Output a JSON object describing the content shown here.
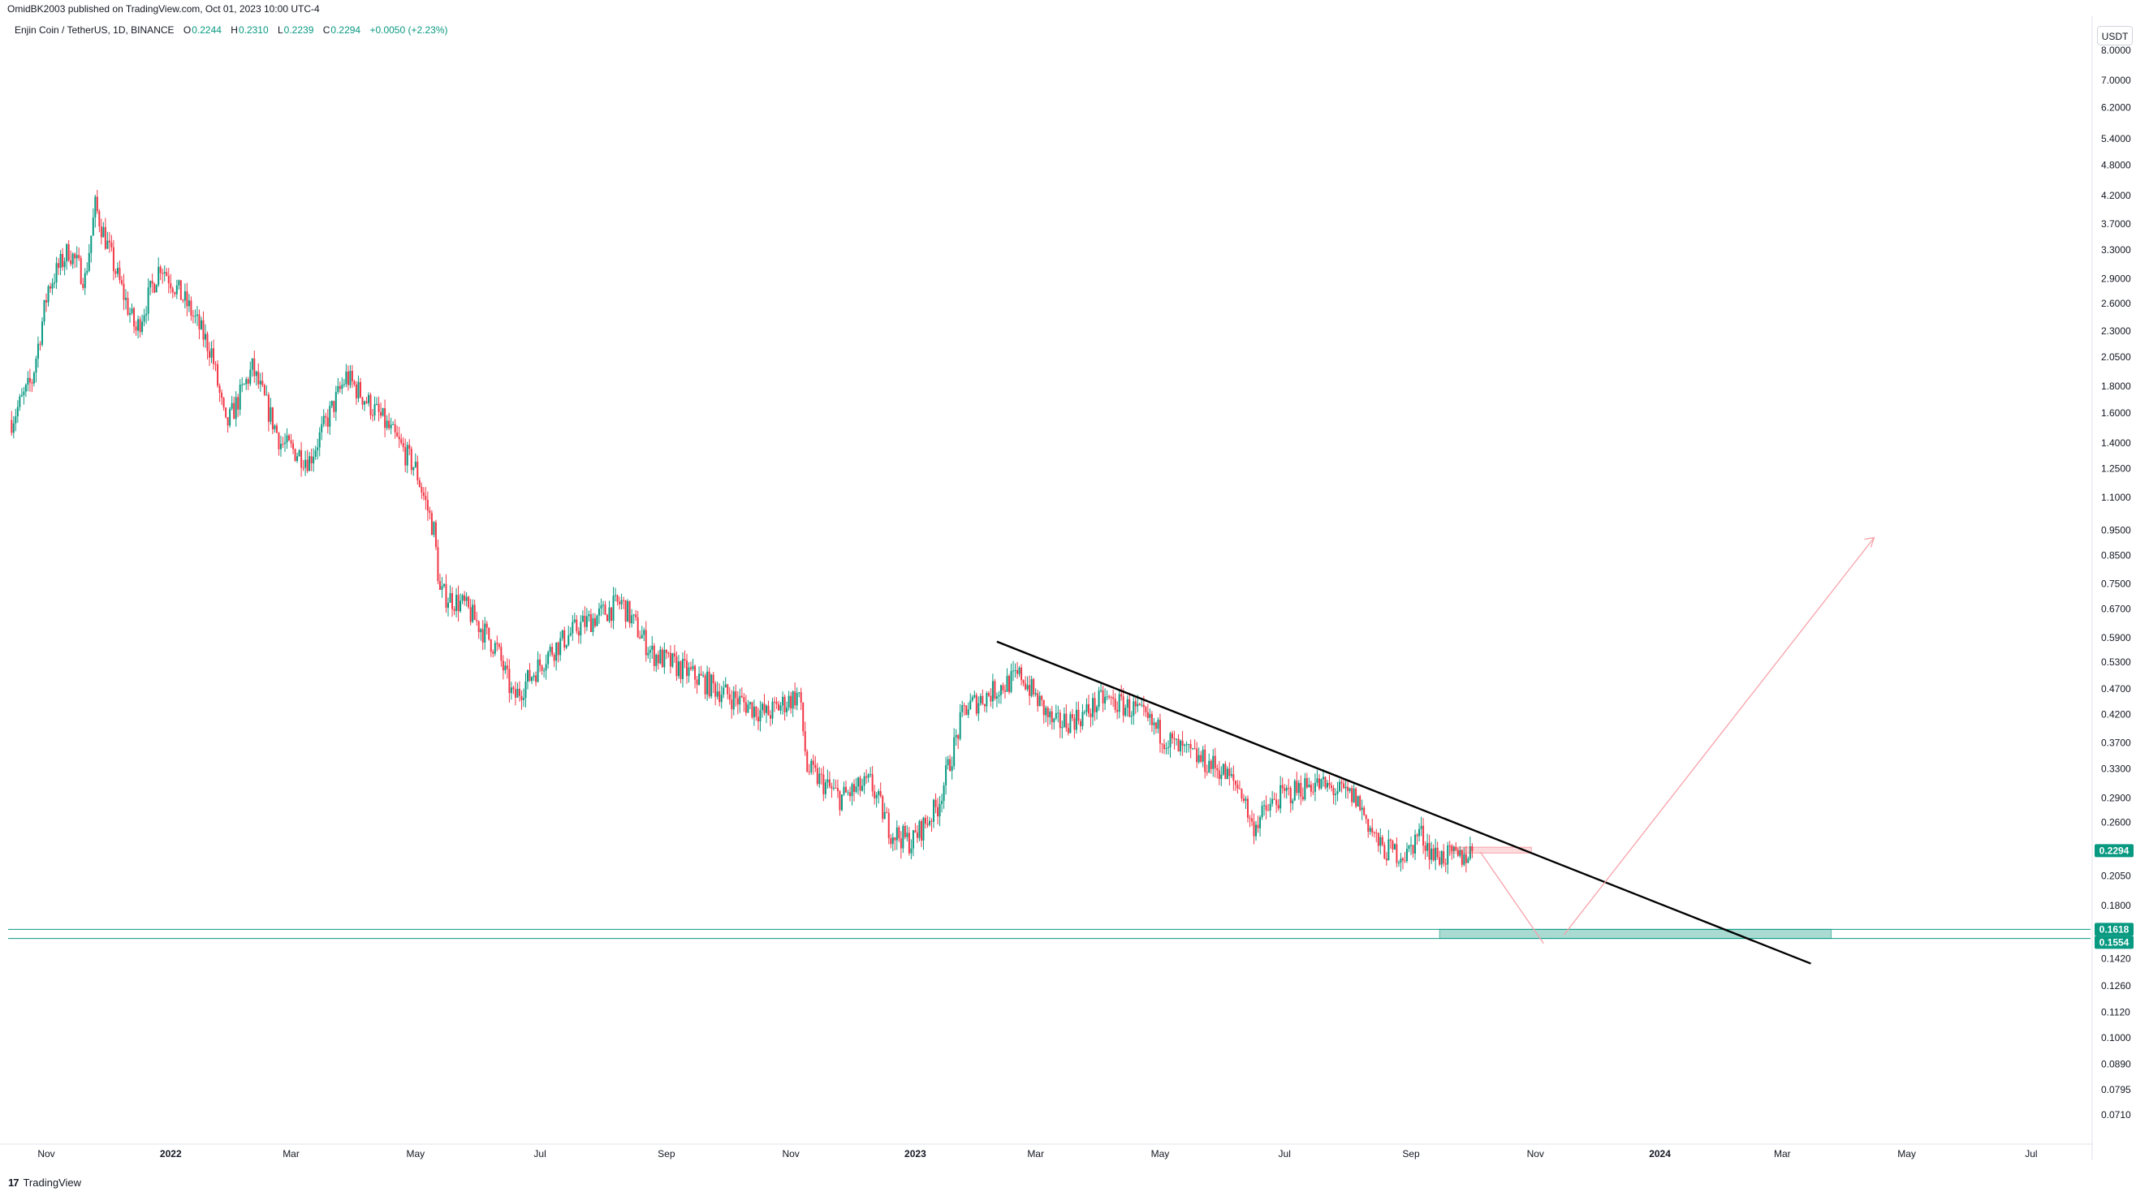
{
  "header": {
    "publisher": "OmidBK2003 published on TradingView.com, Oct 01, 2023 10:00 UTC-4"
  },
  "legend": {
    "symbol": "Enjin Coin / TetherUS, 1D, BINANCE",
    "open_label": "O",
    "open": "0.2244",
    "high_label": "H",
    "high": "0.2310",
    "low_label": "L",
    "low": "0.2239",
    "close_label": "C",
    "close": "0.2294",
    "change": "+0.0050 (+2.23%)"
  },
  "currency_button": "USDT",
  "footer": {
    "brand": "TradingView",
    "logo_text": "17"
  },
  "colors": {
    "up": "#089981",
    "down": "#f23645",
    "zone": "#089981",
    "trendline": "#000000",
    "projection": "#f7a1a9"
  },
  "chart_data": {
    "type": "candlestick",
    "scale": "log",
    "ylim": [
      0.064,
      9.3
    ],
    "x_ticks": [
      {
        "label": "Nov",
        "date": "2021-11-01"
      },
      {
        "label": "2022",
        "date": "2022-01-01"
      },
      {
        "label": "Mar",
        "date": "2022-03-01"
      },
      {
        "label": "May",
        "date": "2022-05-01"
      },
      {
        "label": "Jul",
        "date": "2022-07-01"
      },
      {
        "label": "Sep",
        "date": "2022-09-01"
      },
      {
        "label": "Nov",
        "date": "2022-11-01"
      },
      {
        "label": "2023",
        "date": "2023-01-01"
      },
      {
        "label": "Mar",
        "date": "2023-03-01"
      },
      {
        "label": "May",
        "date": "2023-05-01"
      },
      {
        "label": "Jul",
        "date": "2023-07-01"
      },
      {
        "label": "Sep",
        "date": "2023-09-01"
      },
      {
        "label": "Nov",
        "date": "2023-11-01"
      },
      {
        "label": "2024",
        "date": "2024-01-01"
      },
      {
        "label": "Mar",
        "date": "2024-03-01"
      },
      {
        "label": "May",
        "date": "2024-05-01"
      },
      {
        "label": "Jul",
        "date": "2024-07-01"
      }
    ],
    "y_ticks": [
      "8.0000",
      "7.0000",
      "6.2000",
      "5.4000",
      "4.8000",
      "4.2000",
      "3.7000",
      "3.3000",
      "2.9000",
      "2.6000",
      "2.3000",
      "2.0500",
      "1.8000",
      "1.6000",
      "1.4000",
      "1.2500",
      "1.1000",
      "0.9500",
      "0.8500",
      "0.7500",
      "0.6700",
      "0.5900",
      "0.5300",
      "0.4700",
      "0.4200",
      "0.3700",
      "0.3300",
      "0.2900",
      "0.2600",
      "0.2294",
      "0.2050",
      "0.1800",
      "0.1618",
      "0.1554",
      "0.1420",
      "0.1260",
      "0.1120",
      "0.1000",
      "0.0890",
      "0.0795",
      "0.0710"
    ],
    "price_key_points": [
      {
        "date": "2021-10-15",
        "price": 1.55
      },
      {
        "date": "2021-10-25",
        "price": 1.85
      },
      {
        "date": "2021-11-02",
        "price": 2.8
      },
      {
        "date": "2021-11-12",
        "price": 3.3
      },
      {
        "date": "2021-11-20",
        "price": 2.9
      },
      {
        "date": "2021-11-25",
        "price": 4.0
      },
      {
        "date": "2021-12-05",
        "price": 3.0
      },
      {
        "date": "2021-12-15",
        "price": 2.3
      },
      {
        "date": "2021-12-27",
        "price": 3.1
      },
      {
        "date": "2022-01-10",
        "price": 2.55
      },
      {
        "date": "2022-01-21",
        "price": 2.1
      },
      {
        "date": "2022-01-28",
        "price": 1.5
      },
      {
        "date": "2022-02-10",
        "price": 1.95
      },
      {
        "date": "2022-02-24",
        "price": 1.4
      },
      {
        "date": "2022-03-10",
        "price": 1.3
      },
      {
        "date": "2022-03-28",
        "price": 1.88
      },
      {
        "date": "2022-04-15",
        "price": 1.55
      },
      {
        "date": "2022-05-01",
        "price": 1.25
      },
      {
        "date": "2022-05-10",
        "price": 0.95
      },
      {
        "date": "2022-05-13",
        "price": 0.72
      },
      {
        "date": "2022-05-25",
        "price": 0.68
      },
      {
        "date": "2022-06-10",
        "price": 0.56
      },
      {
        "date": "2022-06-18",
        "price": 0.45
      },
      {
        "date": "2022-07-05",
        "price": 0.55
      },
      {
        "date": "2022-07-20",
        "price": 0.62
      },
      {
        "date": "2022-08-10",
        "price": 0.69
      },
      {
        "date": "2022-08-25",
        "price": 0.55
      },
      {
        "date": "2022-09-10",
        "price": 0.51
      },
      {
        "date": "2022-09-30",
        "price": 0.46
      },
      {
        "date": "2022-10-20",
        "price": 0.42
      },
      {
        "date": "2022-11-05",
        "price": 0.46
      },
      {
        "date": "2022-11-09",
        "price": 0.33
      },
      {
        "date": "2022-11-25",
        "price": 0.29
      },
      {
        "date": "2022-12-10",
        "price": 0.31
      },
      {
        "date": "2022-12-20",
        "price": 0.25
      },
      {
        "date": "2022-12-30",
        "price": 0.238
      },
      {
        "date": "2023-01-12",
        "price": 0.28
      },
      {
        "date": "2023-01-25",
        "price": 0.43
      },
      {
        "date": "2023-02-10",
        "price": 0.47
      },
      {
        "date": "2023-02-22",
        "price": 0.5
      },
      {
        "date": "2023-03-10",
        "price": 0.4
      },
      {
        "date": "2023-03-25",
        "price": 0.42
      },
      {
        "date": "2023-04-03",
        "price": 0.45
      },
      {
        "date": "2023-04-18",
        "price": 0.43
      },
      {
        "date": "2023-05-10",
        "price": 0.36
      },
      {
        "date": "2023-05-30",
        "price": 0.33
      },
      {
        "date": "2023-06-10",
        "price": 0.3
      },
      {
        "date": "2023-06-15",
        "price": 0.255
      },
      {
        "date": "2023-06-28",
        "price": 0.29
      },
      {
        "date": "2023-07-15",
        "price": 0.31
      },
      {
        "date": "2023-08-05",
        "price": 0.29
      },
      {
        "date": "2023-08-17",
        "price": 0.232
      },
      {
        "date": "2023-08-30",
        "price": 0.225
      },
      {
        "date": "2023-09-05",
        "price": 0.25
      },
      {
        "date": "2023-09-12",
        "price": 0.225
      },
      {
        "date": "2023-09-25",
        "price": 0.222
      },
      {
        "date": "2023-10-01",
        "price": 0.2294
      }
    ],
    "lines": [
      {
        "name": "descending-trendline",
        "from": {
          "date": "2023-02-10",
          "price": 0.58
        },
        "to": {
          "date": "2024-03-15",
          "price": 0.139
        }
      },
      {
        "name": "projection-down",
        "from": {
          "date": "2023-10-05",
          "price": 0.228
        },
        "to": {
          "date": "2023-11-05",
          "price": 0.152
        }
      },
      {
        "name": "projection-up",
        "from": {
          "date": "2023-11-15",
          "price": 0.158
        },
        "to": {
          "date": "2024-04-15",
          "price": 0.92
        }
      }
    ],
    "zones": [
      {
        "name": "support-zone",
        "price_top": 0.1618,
        "price_bottom": 0.1554,
        "from": "2023-09-15",
        "to": "2024-03-25"
      }
    ],
    "horizontal_levels": [
      0.1618,
      0.1554
    ],
    "price_labels": [
      {
        "value": "0.2294",
        "color": "#089981"
      },
      {
        "value": "0.1618",
        "color": "#089981"
      },
      {
        "value": "0.1554",
        "color": "#089981"
      }
    ]
  }
}
